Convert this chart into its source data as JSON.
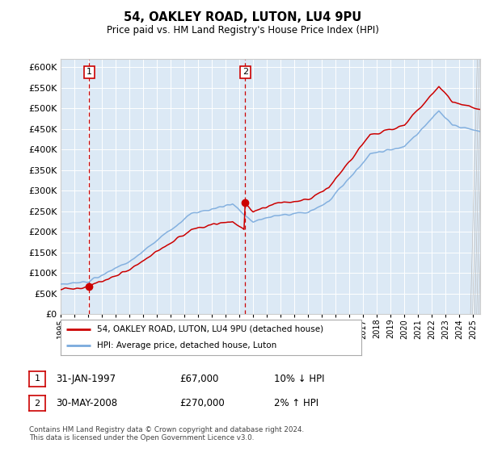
{
  "title": "54, OAKLEY ROAD, LUTON, LU4 9PU",
  "subtitle": "Price paid vs. HM Land Registry's House Price Index (HPI)",
  "legend_line1": "54, OAKLEY ROAD, LUTON, LU4 9PU (detached house)",
  "legend_line2": "HPI: Average price, detached house, Luton",
  "annotation1_date": "31-JAN-1997",
  "annotation1_price": "£67,000",
  "annotation1_hpi": "10% ↓ HPI",
  "annotation2_date": "30-MAY-2008",
  "annotation2_price": "£270,000",
  "annotation2_hpi": "2% ↑ HPI",
  "footer": "Contains HM Land Registry data © Crown copyright and database right 2024.\nThis data is licensed under the Open Government Licence v3.0.",
  "plot_bg": "#dce9f5",
  "red_color": "#cc0000",
  "blue_color": "#7aaadd",
  "vline_color": "#cc0000",
  "ylim": [
    0,
    620000
  ],
  "yticks": [
    0,
    50000,
    100000,
    150000,
    200000,
    250000,
    300000,
    350000,
    400000,
    450000,
    500000,
    550000,
    600000
  ],
  "sale1_x": 1997.083,
  "sale1_y": 67000,
  "sale2_x": 2008.416,
  "sale2_y": 270000,
  "xmin": 1995.0,
  "xmax": 2025.5
}
